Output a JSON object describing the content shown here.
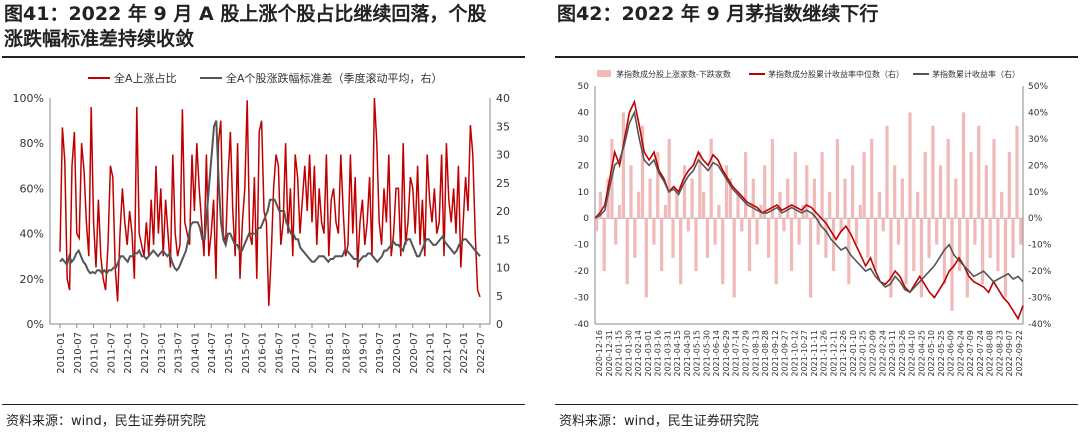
{
  "left": {
    "title": "图41：2022 年 9 月 A 股上涨个股占比继续回落，个股涨跌幅标准差持续收敛",
    "title_line1": "图41：2022 年 9 月 A 股上涨个股占比继续回落，个股",
    "title_line2": "涨跌幅标准差持续收敛",
    "source": "资料来源：wind，民生证券研究院"
  },
  "right": {
    "title": "图42：2022 年 9 月茅指数继续下行",
    "source": "资料来源：wind，民生证券研究院"
  },
  "colors": {
    "red": "#c00000",
    "gray": "#555555",
    "pink": "#f2b9b9"
  },
  "chart_data": [
    {
      "type": "line",
      "title": "全A上涨占比 vs 全A个股涨跌幅标准差",
      "legend": [
        "全A上涨占比",
        "全A个股涨跌幅标准差（季度滚动平均，右）"
      ],
      "x_ticks": [
        "2010-01",
        "2010-07",
        "2011-01",
        "2011-07",
        "2012-01",
        "2012-07",
        "2013-01",
        "2013-07",
        "2014-01",
        "2014-07",
        "2015-01",
        "2015-07",
        "2016-01",
        "2016-07",
        "2017-01",
        "2017-07",
        "2018-01",
        "2018-07",
        "2019-01",
        "2019-07",
        "2020-01",
        "2020-07",
        "2021-01",
        "2021-07",
        "2022-01",
        "2022-07"
      ],
      "y_left_ticks": [
        "0%",
        "20%",
        "40%",
        "60%",
        "80%",
        "100%"
      ],
      "y_left_range": [
        0,
        100
      ],
      "y_right_ticks": [
        "0",
        "5",
        "10",
        "15",
        "20",
        "25",
        "30",
        "35",
        "40"
      ],
      "y_right_range": [
        0,
        40
      ],
      "series": [
        {
          "name": "全A上涨占比",
          "axis": "left",
          "color": "#c00000",
          "values": [
            32,
            87,
            72,
            20,
            15,
            70,
            85,
            40,
            38,
            80,
            68,
            45,
            30,
            96,
            45,
            25,
            55,
            30,
            20,
            15,
            35,
            70,
            65,
            25,
            10,
            40,
            60,
            45,
            35,
            50,
            40,
            20,
            96,
            40,
            35,
            30,
            45,
            30,
            55,
            35,
            70,
            40,
            60,
            30,
            55,
            40,
            25,
            75,
            40,
            30,
            35,
            95,
            45,
            40,
            35,
            75,
            50,
            80,
            60,
            45,
            30,
            75,
            30,
            40,
            55,
            20,
            80,
            90,
            40,
            35,
            65,
            85,
            50,
            30,
            80,
            20,
            45,
            60,
            99,
            40,
            35,
            65,
            20,
            85,
            90,
            50,
            45,
            8,
            30,
            60,
            75,
            70,
            35,
            45,
            80,
            40,
            60,
            30,
            75,
            65,
            40,
            55,
            70,
            50,
            75,
            45,
            70,
            35,
            60,
            45,
            40,
            75,
            30,
            55,
            60,
            45,
            40,
            75,
            50,
            30,
            35,
            75,
            40,
            65,
            25,
            45,
            55,
            35,
            45,
            65,
            30,
            100,
            80,
            45,
            35,
            60,
            45,
            75,
            30,
            40,
            60,
            60,
            30,
            80,
            35,
            45,
            65,
            60,
            40,
            70,
            35,
            55,
            30,
            75,
            55,
            45,
            60,
            40,
            45,
            75,
            30,
            80,
            55,
            45,
            60,
            40,
            70,
            25,
            45,
            65,
            50,
            88,
            75,
            40,
            15,
            12
          ]
        },
        {
          "name": "全A个股涨跌幅标准差（季度滚动平均，右）",
          "axis": "right",
          "color": "#555555",
          "values": [
            11,
            11.5,
            11,
            10.5,
            12,
            11,
            11.5,
            12.5,
            13,
            12,
            11,
            10.5,
            9.5,
            9,
            9.2,
            9,
            9.5,
            9.5,
            9,
            9.5,
            9,
            9.5,
            9.5,
            10,
            10,
            11,
            12,
            12,
            11.5,
            11,
            12,
            12,
            12.5,
            12.5,
            13,
            12,
            12,
            11.5,
            12,
            12.5,
            13,
            12.5,
            12,
            12.5,
            13,
            12.5,
            12,
            12.5,
            11,
            10,
            9.5,
            10,
            11,
            12,
            13,
            15,
            17.5,
            18,
            18,
            18,
            17,
            15,
            15,
            20,
            25,
            30,
            35,
            36,
            25,
            18,
            15,
            14,
            16,
            16,
            15,
            14,
            14,
            13,
            13,
            14,
            15,
            16,
            16,
            16,
            16,
            17,
            17,
            18,
            19,
            20,
            22,
            22,
            22,
            21,
            20,
            20,
            20,
            18,
            17,
            16,
            16,
            15,
            15,
            13.5,
            13,
            12.5,
            12,
            11.5,
            11,
            11,
            11.5,
            12,
            12,
            12,
            11.5,
            11,
            11.5,
            11.5,
            12,
            12,
            12,
            12,
            13,
            13,
            12.5,
            12,
            11.5,
            11.5,
            11,
            11.5,
            12,
            12,
            12.5,
            12.5,
            12,
            11.5,
            11,
            11.5,
            12,
            13,
            13,
            13.5,
            14,
            14.5,
            14,
            14,
            13.5,
            13,
            14.5,
            15,
            15,
            14,
            13,
            12,
            12,
            13,
            14,
            15,
            15,
            14.5,
            14,
            14,
            14.5,
            15,
            15.5,
            14.5,
            14,
            13.5,
            13,
            12.5,
            13,
            14,
            14.5,
            15,
            15,
            14.5,
            14,
            13.5,
            13,
            12.5,
            12
          ]
        }
      ]
    },
    {
      "type": "line",
      "title": "茅指数",
      "legend": [
        "茅指数成分股上涨家数-下跌家数",
        "茅指数成分股累计收益率中位数（右）",
        "茅指数累计收益率（右）"
      ],
      "x_ticks": [
        "2020-12-16",
        "2020-12-31",
        "2021-01-15",
        "2021-01-30",
        "2021-02-14",
        "2021-03-01",
        "2021-03-16",
        "2021-03-31",
        "2021-04-15",
        "2021-04-30",
        "2021-05-15",
        "2021-05-30",
        "2021-06-14",
        "2021-06-29",
        "2021-07-14",
        "2021-07-29",
        "2021-08-13",
        "2021-08-28",
        "2021-09-12",
        "2021-09-27",
        "2021-10-12",
        "2021-10-27",
        "2021-11-11",
        "2021-11-26",
        "2021-12-11",
        "2021-12-26",
        "2022-01-10",
        "2022-01-25",
        "2022-02-09",
        "2022-02-24",
        "2022-03-11",
        "2022-03-26",
        "2022-04-10",
        "2022-04-25",
        "2022-05-10",
        "2022-05-25",
        "2022-06-09",
        "2022-06-24",
        "2022-07-09",
        "2022-07-24",
        "2022-08-08",
        "2022-08-23",
        "2022-09-07",
        "2022-09-22"
      ],
      "y_left_ticks": [
        "-40",
        "-30",
        "-20",
        "-10",
        "0",
        "10",
        "20",
        "30",
        "40",
        "50"
      ],
      "y_left_range": [
        -40,
        50
      ],
      "y_right_ticks": [
        "-40%",
        "-30%",
        "-20%",
        "-10%",
        "0%",
        "10%",
        "20%",
        "30%",
        "40%",
        "50%"
      ],
      "y_right_range": [
        -40,
        50
      ],
      "series": [
        {
          "name": "茅指数成分股上涨家数-下跌家数",
          "axis": "left",
          "type": "bar",
          "color": "#f2b9b9",
          "values": [
            -5,
            10,
            -20,
            15,
            30,
            -10,
            5,
            40,
            -25,
            20,
            -15,
            10,
            35,
            -30,
            15,
            -10,
            25,
            -20,
            5,
            30,
            -15,
            10,
            -25,
            20,
            -5,
            15,
            -20,
            25,
            10,
            -15,
            30,
            -10,
            5,
            -25,
            20,
            15,
            -30,
            10,
            -5,
            25,
            -20,
            15,
            -10,
            5,
            20,
            -15,
            30,
            -25,
            10,
            -5,
            15,
            -20,
            25,
            -10,
            5,
            20,
            -30,
            15,
            -10,
            25,
            -15,
            10,
            -20,
            30,
            -5,
            15,
            -25,
            20,
            -10,
            5,
            25,
            -15,
            30,
            -20,
            10,
            -5,
            35,
            -30,
            20,
            -10,
            15,
            -25,
            40,
            -20,
            10,
            -30,
            25,
            -15,
            35,
            -10,
            20,
            -25,
            30,
            -35,
            15,
            -20,
            40,
            -30,
            25,
            -10,
            35,
            -25,
            20,
            -15,
            30,
            -20,
            10,
            -30,
            25,
            -15,
            35,
            -10
          ]
        },
        {
          "name": "茅指数成分股累计收益率中位数（右）",
          "axis": "right",
          "color": "#c00000",
          "values": [
            0,
            2,
            5,
            15,
            25,
            20,
            30,
            40,
            44,
            35,
            25,
            22,
            25,
            18,
            15,
            10,
            12,
            10,
            15,
            18,
            20,
            25,
            22,
            20,
            24,
            22,
            18,
            15,
            12,
            10,
            8,
            6,
            5,
            4,
            2,
            3,
            4,
            5,
            3,
            4,
            5,
            4,
            3,
            5,
            4,
            2,
            0,
            -2,
            -5,
            -8,
            -5,
            -3,
            -6,
            -10,
            -14,
            -18,
            -15,
            -20,
            -24,
            -25,
            -23,
            -20,
            -22,
            -26,
            -28,
            -25,
            -22,
            -25,
            -28,
            -30,
            -27,
            -24,
            -20,
            -18,
            -15,
            -18,
            -22,
            -24,
            -25,
            -26,
            -28,
            -24,
            -27,
            -30,
            -32,
            -35,
            -38,
            -33
          ]
        },
        {
          "name": "茅指数累计收益率（右）",
          "axis": "right",
          "color": "#555555",
          "values": [
            0,
            1,
            3,
            12,
            20,
            22,
            28,
            36,
            40,
            30,
            22,
            20,
            22,
            17,
            14,
            10,
            11,
            9,
            13,
            16,
            18,
            22,
            20,
            18,
            21,
            20,
            17,
            14,
            11,
            9,
            7,
            5,
            4,
            3,
            2,
            2,
            3,
            4,
            2,
            3,
            4,
            3,
            2,
            3,
            2,
            0,
            -3,
            -5,
            -8,
            -10,
            -12,
            -11,
            -14,
            -16,
            -18,
            -20,
            -19,
            -22,
            -24,
            -26,
            -25,
            -22,
            -24,
            -27,
            -28,
            -26,
            -24,
            -22,
            -20,
            -18,
            -15,
            -12,
            -10,
            -14,
            -16,
            -18,
            -20,
            -22,
            -21,
            -20,
            -22,
            -24,
            -23,
            -22,
            -21,
            -23,
            -22,
            -24
          ]
        }
      ]
    }
  ]
}
